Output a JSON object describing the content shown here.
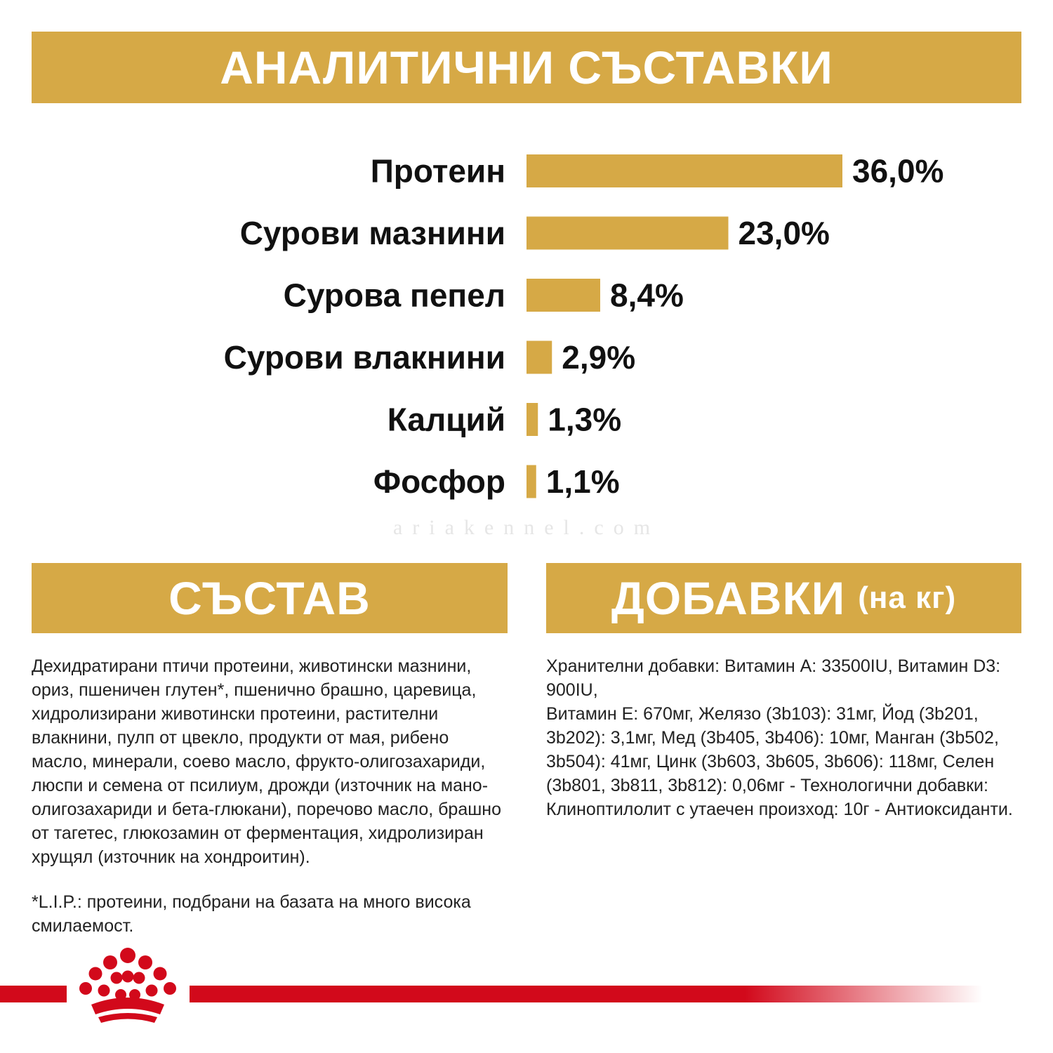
{
  "header": {
    "title": "АНАЛИТИЧНИ СЪСТАВКИ"
  },
  "colors": {
    "gold": "#d6a946",
    "red": "#d2091b",
    "background": "#ffffff"
  },
  "chart_data": {
    "type": "bar",
    "orientation": "horizontal",
    "title": "АНАЛИТИЧНИ СЪСТАВКИ",
    "categories": [
      "Протеин",
      "Сурови мазнини",
      "Сурова пепел",
      "Сурови влакнини",
      "Калций",
      "Фосфор"
    ],
    "values": [
      36.0,
      23.0,
      8.4,
      2.9,
      1.3,
      1.1
    ],
    "value_labels": [
      "36,0%",
      "23,0%",
      "8,4%",
      "2,9%",
      "1,3%",
      "1,1%"
    ],
    "unit": "%",
    "xlim": [
      0,
      36.0
    ],
    "grid": false,
    "legend": "none"
  },
  "watermark": "ariakennel.com",
  "sostav": {
    "title": "СЪСТАВ",
    "text": "Дехидратирани птичи протеини, животински мазнини,\nориз, пшеничен глутен*, пшенично брашно, царевица,\nхидролизирани животински протеини, растителни\nвлакнини, пулп от цвекло, продукти от мая, рибено\nмасло, минерали, соево масло, фрукто-олигозахариди,\nлюспи и семена от псилиум, дрожди (източник на мано-\nолигозахариди и бета-глюкани), поречово масло, брашно\nот тагетес, глюкозамин от ферментация, хидролизиран\nхрущял (източник на хондроитин).",
    "note": "*L.I.P.: протеини, подбрани на базата на много висока\nсмилаемост."
  },
  "dobavki": {
    "title": "ДОБАВКИ",
    "subtitle": "(на кг)",
    "text": "Хранителни добавки: Витамин А: 33500IU, Витамин D3: 900IU,\nВитамин Е: 670мг, Желязо (3b103): 31мг, Йод (3b201,\n3b202): 3,1мг, Мед (3b405, 3b406): 10мг, Манган (3b502,\n3b504): 41мг, Цинк (3b603, 3b605, 3b606): 118мг, Селен\n(3b801, 3b811, 3b812): 0,06мг - Технологични добавки:\nКлиноптилолит с утаечен произход: 10г - Антиоксиданти."
  },
  "footer": {
    "logo_icon": "royal-canin-crown-icon"
  }
}
